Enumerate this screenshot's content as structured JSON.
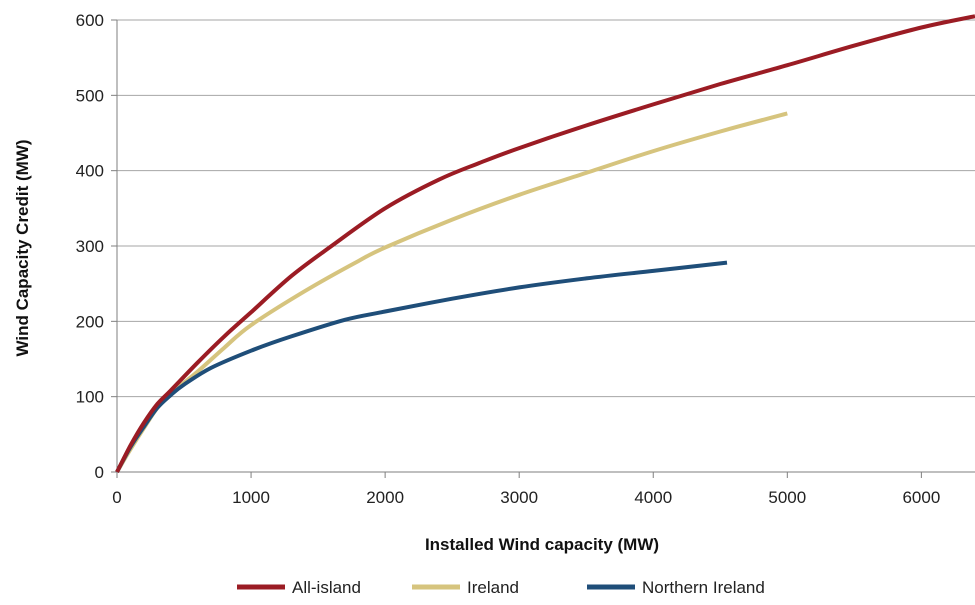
{
  "chart_data": {
    "type": "line",
    "title": "",
    "xlabel": "Installed Wind capacity (MW)",
    "ylabel": "Wind Capacity Credit (MW)",
    "xlim": [
      0,
      6400
    ],
    "ylim": [
      0,
      600
    ],
    "x_ticks": [
      "0",
      "1000",
      "2000",
      "3000",
      "4000",
      "5000",
      "6000"
    ],
    "y_ticks": [
      "0",
      "100",
      "200",
      "300",
      "400",
      "500",
      "600"
    ],
    "grid": true,
    "legend_position": "bottom",
    "series": [
      {
        "name": "All-island",
        "color": "#9b1c24",
        "x": [
          0,
          100,
          200,
          300,
          400,
          600,
          800,
          1000,
          1300,
          1600,
          2000,
          2400,
          2700,
          3000,
          3500,
          4000,
          4500,
          5000,
          5500,
          6000,
          6400
        ],
        "y": [
          0,
          35,
          65,
          90,
          108,
          145,
          180,
          212,
          260,
          300,
          350,
          388,
          410,
          430,
          460,
          488,
          515,
          540,
          566,
          590,
          605
        ]
      },
      {
        "name": "Ireland",
        "color": "#d6c47e",
        "x": [
          0,
          100,
          200,
          300,
          400,
          600,
          800,
          1000,
          1400,
          1800,
          2000,
          2500,
          3000,
          3500,
          4000,
          4500,
          5000
        ],
        "y": [
          0,
          30,
          58,
          85,
          104,
          133,
          165,
          195,
          240,
          280,
          298,
          335,
          368,
          397,
          426,
          452,
          476
        ]
      },
      {
        "name": "Northern Ireland",
        "color": "#1f4e79",
        "x": [
          0,
          100,
          200,
          300,
          400,
          500,
          700,
          1000,
          1300,
          1700,
          2000,
          2500,
          3000,
          3500,
          4000,
          4550
        ],
        "y": [
          0,
          33,
          60,
          85,
          102,
          116,
          138,
          161,
          180,
          202,
          213,
          230,
          245,
          257,
          267,
          278
        ]
      }
    ]
  }
}
